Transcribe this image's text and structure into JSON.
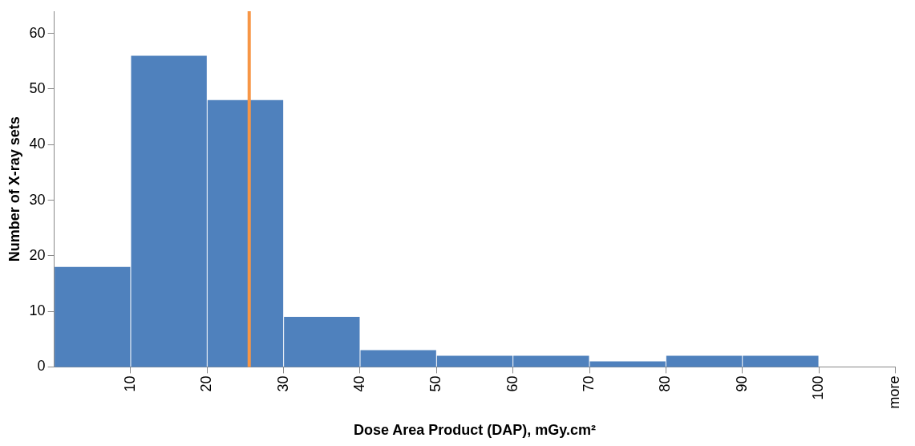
{
  "chart_data": {
    "type": "histogram",
    "xlabel": "Dose Area Product (DAP), mGy.cm²",
    "ylabel": "Number of X-ray sets",
    "bins": [
      0,
      10,
      20,
      30,
      40,
      50,
      60,
      70,
      80,
      90,
      100,
      110
    ],
    "values": [
      18,
      56,
      48,
      9,
      3,
      2,
      2,
      1,
      2,
      2,
      0
    ],
    "color": "#4f81bd",
    "xlim": [
      0,
      110
    ],
    "xticks": [
      10,
      20,
      30,
      40,
      50,
      60,
      70,
      80,
      90,
      100,
      {
        "value": 110,
        "label": "more"
      }
    ],
    "ylim": [
      0,
      64
    ],
    "yticks": [
      0,
      10,
      20,
      30,
      40,
      50,
      60
    ],
    "ref_lines": [
      {
        "axis": "x",
        "value": 25.5,
        "color": "#f79646"
      }
    ],
    "grid": false,
    "legend": false
  }
}
